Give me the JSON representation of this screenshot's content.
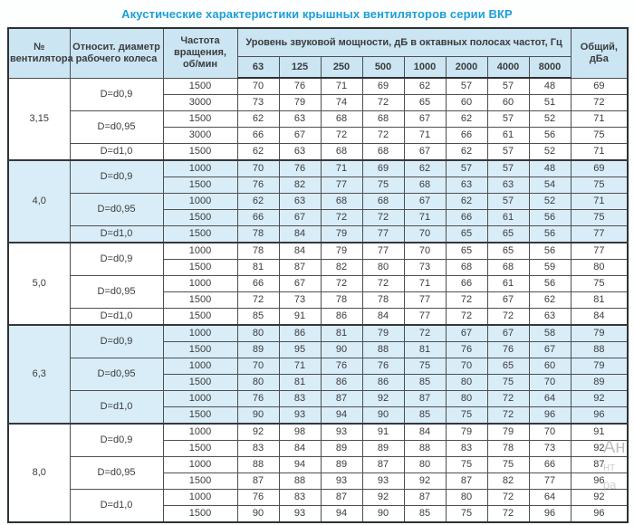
{
  "title": "Акустические характеристики крышных вентиляторов серии ВКР",
  "colors": {
    "title_accent": "#1b9fd8",
    "header_bg": "#cbe5f2",
    "shaded_group_bg": "#d9edf8",
    "border": "#4d4f51",
    "text": "#3a3c3e"
  },
  "watermark": {
    "fragments": [
      "Ан",
      "нт",
      "ра"
    ]
  },
  "table": {
    "headers": {
      "fan_no": "№\nвентилятора",
      "diameter": "Относит. диаметр\nрабочего колеса",
      "rpm": "Частота\nвращения,\nоб/мин",
      "octave_group": "Уровень звуковой мощности, дБ в октавных полосах частот, Гц",
      "octave_bands": [
        "63",
        "125",
        "250",
        "500",
        "1000",
        "2000",
        "4000",
        "8000"
      ],
      "total": "Общий,\nдБа"
    },
    "groups": [
      {
        "fan": "3,15",
        "shaded": false,
        "subgroups": [
          {
            "diameter": "D=d0,9",
            "rows": [
              {
                "rpm": "1500",
                "levels": [
                  70,
                  76,
                  71,
                  69,
                  62,
                  57,
                  57,
                  48
                ],
                "total": 69
              },
              {
                "rpm": "3000",
                "levels": [
                  73,
                  79,
                  74,
                  72,
                  65,
                  60,
                  60,
                  51
                ],
                "total": 72
              }
            ]
          },
          {
            "diameter": "D=d0,95",
            "rows": [
              {
                "rpm": "1500",
                "levels": [
                  62,
                  63,
                  68,
                  68,
                  67,
                  62,
                  57,
                  52
                ],
                "total": 71
              },
              {
                "rpm": "3000",
                "levels": [
                  66,
                  67,
                  72,
                  72,
                  71,
                  66,
                  61,
                  56
                ],
                "total": 75
              }
            ]
          },
          {
            "diameter": "D=d1,0",
            "rows": [
              {
                "rpm": "1500",
                "levels": [
                  62,
                  63,
                  68,
                  68,
                  67,
                  62,
                  57,
                  52
                ],
                "total": 71
              }
            ]
          }
        ]
      },
      {
        "fan": "4,0",
        "shaded": true,
        "subgroups": [
          {
            "diameter": "D=d0,9",
            "rows": [
              {
                "rpm": "1000",
                "levels": [
                  70,
                  76,
                  71,
                  69,
                  62,
                  57,
                  57,
                  48
                ],
                "total": 69
              },
              {
                "rpm": "1500",
                "levels": [
                  76,
                  82,
                  77,
                  75,
                  68,
                  63,
                  63,
                  54
                ],
                "total": 75
              }
            ]
          },
          {
            "diameter": "D=d0,95",
            "rows": [
              {
                "rpm": "1000",
                "levels": [
                  62,
                  63,
                  68,
                  68,
                  67,
                  62,
                  57,
                  52
                ],
                "total": 71
              },
              {
                "rpm": "1500",
                "levels": [
                  66,
                  67,
                  72,
                  72,
                  71,
                  66,
                  61,
                  56
                ],
                "total": 75
              }
            ]
          },
          {
            "diameter": "D=d1,0",
            "rows": [
              {
                "rpm": "1500",
                "levels": [
                  78,
                  84,
                  79,
                  77,
                  70,
                  65,
                  65,
                  56
                ],
                "total": 77
              }
            ]
          }
        ]
      },
      {
        "fan": "5,0",
        "shaded": false,
        "subgroups": [
          {
            "diameter": "D=d0,9",
            "rows": [
              {
                "rpm": "1000",
                "levels": [
                  78,
                  84,
                  79,
                  77,
                  70,
                  65,
                  65,
                  56
                ],
                "total": 77
              },
              {
                "rpm": "1500",
                "levels": [
                  81,
                  87,
                  82,
                  80,
                  73,
                  68,
                  68,
                  59
                ],
                "total": 80
              }
            ]
          },
          {
            "diameter": "D=d0,95",
            "rows": [
              {
                "rpm": "1000",
                "levels": [
                  66,
                  67,
                  72,
                  72,
                  71,
                  66,
                  61,
                  56
                ],
                "total": 75
              },
              {
                "rpm": "1500",
                "levels": [
                  72,
                  73,
                  78,
                  78,
                  77,
                  72,
                  67,
                  62
                ],
                "total": 81
              }
            ]
          },
          {
            "diameter": "D=d1,0",
            "rows": [
              {
                "rpm": "1500",
                "levels": [
                  85,
                  91,
                  86,
                  84,
                  77,
                  72,
                  72,
                  63
                ],
                "total": 84
              }
            ]
          }
        ]
      },
      {
        "fan": "6,3",
        "shaded": true,
        "subgroups": [
          {
            "diameter": "D=d0,9",
            "rows": [
              {
                "rpm": "1000",
                "levels": [
                  80,
                  86,
                  81,
                  79,
                  72,
                  67,
                  67,
                  58
                ],
                "total": 79
              },
              {
                "rpm": "1500",
                "levels": [
                  89,
                  95,
                  90,
                  88,
                  81,
                  76,
                  76,
                  67
                ],
                "total": 88
              }
            ]
          },
          {
            "diameter": "D=d0,95",
            "rows": [
              {
                "rpm": "1000",
                "levels": [
                  70,
                  71,
                  76,
                  76,
                  75,
                  70,
                  65,
                  60
                ],
                "total": 79
              },
              {
                "rpm": "1500",
                "levels": [
                  80,
                  81,
                  86,
                  86,
                  85,
                  80,
                  75,
                  70
                ],
                "total": 89
              }
            ]
          },
          {
            "diameter": "D=d1,0",
            "rows": [
              {
                "rpm": "1000",
                "levels": [
                  76,
                  83,
                  87,
                  92,
                  87,
                  80,
                  72,
                  64
                ],
                "total": 92
              },
              {
                "rpm": "1500",
                "levels": [
                  90,
                  93,
                  94,
                  90,
                  85,
                  75,
                  72,
                  96
                ],
                "total": 96
              }
            ]
          }
        ]
      },
      {
        "fan": "8,0",
        "shaded": false,
        "subgroups": [
          {
            "diameter": "D=d0,9",
            "rows": [
              {
                "rpm": "1000",
                "levels": [
                  92,
                  98,
                  93,
                  91,
                  84,
                  79,
                  79,
                  70
                ],
                "total": 91
              },
              {
                "rpm": "1500",
                "levels": [
                  83,
                  84,
                  89,
                  89,
                  88,
                  83,
                  78,
                  73
                ],
                "total": 92
              }
            ]
          },
          {
            "diameter": "D=d0,95",
            "rows": [
              {
                "rpm": "1000",
                "levels": [
                  88,
                  94,
                  89,
                  87,
                  80,
                  75,
                  75,
                  66
                ],
                "total": 87
              },
              {
                "rpm": "1500",
                "levels": [
                  87,
                  88,
                  93,
                  93,
                  92,
                  87,
                  82,
                  77
                ],
                "total": 96
              }
            ]
          },
          {
            "diameter": "D=d1,0",
            "rows": [
              {
                "rpm": "1000",
                "levels": [
                  76,
                  83,
                  87,
                  92,
                  87,
                  80,
                  72,
                  64
                ],
                "total": 92
              },
              {
                "rpm": "1500",
                "levels": [
                  90,
                  93,
                  94,
                  90,
                  85,
                  75,
                  72,
                  96
                ],
                "total": 96
              }
            ]
          }
        ]
      }
    ]
  }
}
